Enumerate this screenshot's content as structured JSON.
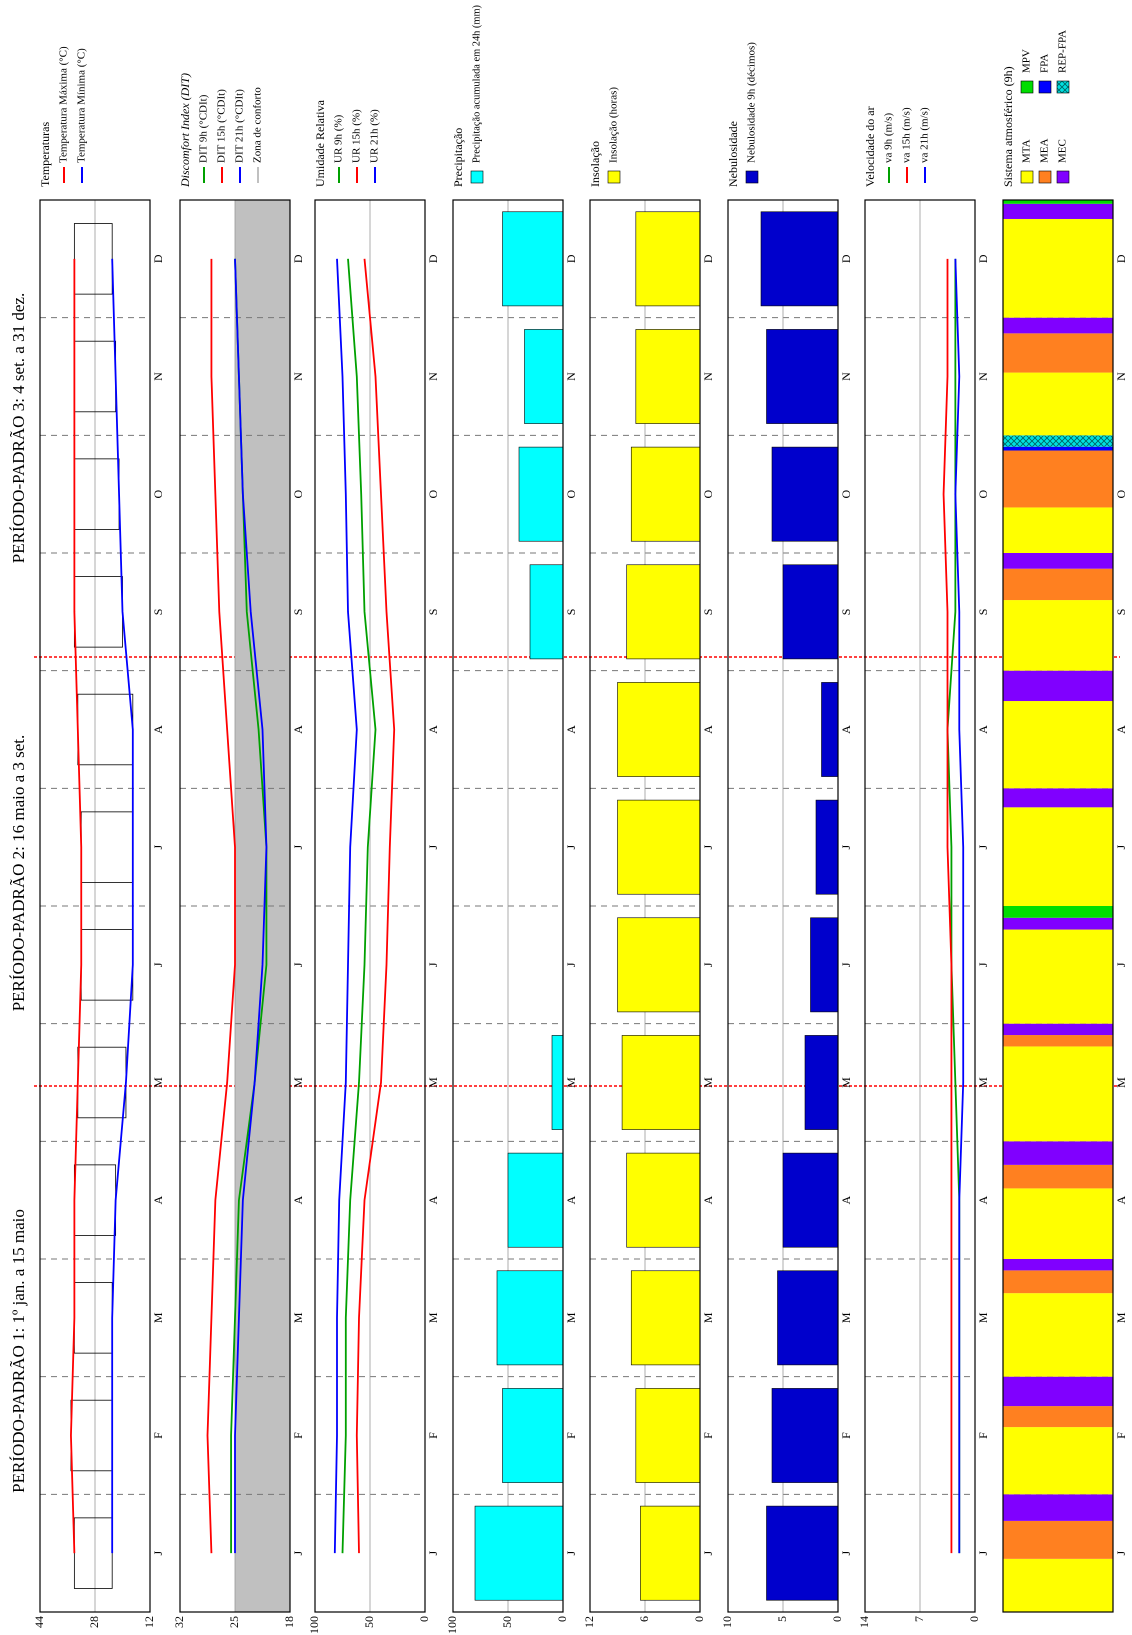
{
  "period_titles": [
    "PERÍODO-PADRÃO 1: 1º jan. a 15 maio",
    "PERÍODO-PADRÃO 2: 16 maio a 3 set.",
    "PERÍODO-PADRÃO 3: 4 set. a 31 dez."
  ],
  "chart_data": [
    {
      "type": "line",
      "legend_title": "Temperaturas",
      "range_bars": true,
      "categories": [
        "J",
        "F",
        "M",
        "A",
        "M",
        "J",
        "J",
        "A",
        "S",
        "O",
        "N",
        "D"
      ],
      "ylim": [
        12,
        44
      ],
      "yticks": [
        12,
        28,
        44
      ],
      "grid": true,
      "series": [
        {
          "name": "Temperatura Máxima (°C)",
          "color": "#ff0000",
          "values": [
            34,
            35,
            34,
            34,
            33,
            32,
            32,
            33,
            34,
            34,
            34,
            34
          ]
        },
        {
          "name": "Temperatura Mínima (°C)",
          "color": "#0000ff",
          "values": [
            23,
            23,
            23,
            22,
            19,
            17,
            17,
            17,
            20,
            21,
            22,
            23
          ]
        }
      ]
    },
    {
      "type": "line",
      "legend_title": "Discomfort Index (DIT)",
      "categories": [
        "J",
        "F",
        "M",
        "A",
        "M",
        "J",
        "J",
        "A",
        "S",
        "O",
        "N",
        "D"
      ],
      "ylim": [
        18,
        32
      ],
      "yticks": [
        18,
        25,
        32
      ],
      "grid": true,
      "comfort_zone": {
        "label": "Zona de conforto",
        "color": "#c0c0c0",
        "range": [
          18,
          25
        ]
      },
      "series": [
        {
          "name": "DIT 9h (°CDIt)",
          "color": "#00a000",
          "values": [
            25.5,
            25.5,
            25,
            24.5,
            22.5,
            21,
            21,
            22,
            23.5,
            24,
            24.5,
            25
          ]
        },
        {
          "name": "DIT 15h (°CDIt)",
          "color": "#ff0000",
          "values": [
            28,
            28.5,
            28,
            27.5,
            26,
            25,
            25,
            26,
            27,
            27.5,
            28,
            28
          ]
        },
        {
          "name": "DIT 21h (°CDIt)",
          "color": "#0000ff",
          "values": [
            25,
            25,
            24.5,
            24,
            22.5,
            21.5,
            21,
            21.5,
            23,
            24,
            24.5,
            25
          ]
        }
      ]
    },
    {
      "type": "line",
      "legend_title": "Umidade Relativa",
      "categories": [
        "J",
        "F",
        "M",
        "A",
        "M",
        "J",
        "J",
        "A",
        "S",
        "O",
        "N",
        "D"
      ],
      "ylim": [
        0,
        100
      ],
      "yticks": [
        0,
        50,
        100
      ],
      "grid": true,
      "series": [
        {
          "name": "UR 9h (%)",
          "color": "#00a000",
          "values": [
            75,
            72,
            72,
            68,
            60,
            55,
            52,
            45,
            55,
            58,
            62,
            70
          ]
        },
        {
          "name": "UR 15h (%)",
          "color": "#ff0000",
          "values": [
            60,
            62,
            60,
            55,
            40,
            35,
            32,
            28,
            35,
            40,
            45,
            55
          ]
        },
        {
          "name": "UR 21h (%)",
          "color": "#0000ff",
          "values": [
            82,
            80,
            80,
            78,
            72,
            70,
            68,
            62,
            70,
            72,
            75,
            80
          ]
        }
      ]
    },
    {
      "type": "bar",
      "legend_title": "Precipitação",
      "categories": [
        "J",
        "F",
        "M",
        "A",
        "M",
        "J",
        "J",
        "A",
        "S",
        "O",
        "N",
        "D"
      ],
      "ylim": [
        0,
        100
      ],
      "yticks": [
        0,
        50,
        100
      ],
      "grid": true,
      "series": [
        {
          "name": "Precipitação acumulada em 24h (mm)",
          "color": "#00ffff",
          "values": [
            80,
            55,
            60,
            50,
            10,
            0,
            0,
            0,
            30,
            40,
            35,
            55
          ]
        }
      ]
    },
    {
      "type": "bar",
      "legend_title": "Insolação",
      "categories": [
        "J",
        "F",
        "M",
        "A",
        "M",
        "J",
        "J",
        "A",
        "S",
        "O",
        "N",
        "D"
      ],
      "ylim": [
        0,
        12
      ],
      "yticks": [
        0,
        6,
        12
      ],
      "grid": true,
      "series": [
        {
          "name": "Insolação (horas)",
          "color": "#ffff00",
          "values": [
            6.5,
            7,
            7.5,
            8,
            8.5,
            9,
            9,
            9,
            8,
            7.5,
            7,
            7
          ]
        }
      ]
    },
    {
      "type": "bar",
      "legend_title": "Nebulosidade",
      "categories": [
        "J",
        "F",
        "M",
        "A",
        "M",
        "J",
        "J",
        "A",
        "S",
        "O",
        "N",
        "D"
      ],
      "ylim": [
        0,
        10
      ],
      "yticks": [
        0,
        5,
        10
      ],
      "grid": true,
      "series": [
        {
          "name": "Nebulosidade 9h (décimos)",
          "color": "#0000cc",
          "values": [
            6.5,
            6,
            5.5,
            5,
            3,
            2.5,
            2,
            1.5,
            5,
            6,
            6.5,
            7
          ]
        }
      ]
    },
    {
      "type": "line",
      "legend_title": "Velocidade do ar",
      "categories": [
        "J",
        "F",
        "M",
        "A",
        "M",
        "J",
        "J",
        "A",
        "S",
        "O",
        "N",
        "D"
      ],
      "ylim": [
        0,
        14
      ],
      "yticks": [
        0,
        7,
        14
      ],
      "grid": true,
      "series": [
        {
          "name": "va 9h (m/s)",
          "color": "#00a000",
          "values": [
            2,
            2,
            2,
            2,
            2.5,
            3,
            3,
            3.5,
            2.5,
            2.5,
            2.5,
            2.5
          ]
        },
        {
          "name": "va 15h (m/s)",
          "color": "#ff0000",
          "values": [
            3,
            3,
            3,
            3,
            3,
            3,
            3.5,
            3.5,
            3.5,
            4,
            3.5,
            3.5
          ]
        },
        {
          "name": "va 21h (m/s)",
          "color": "#0000ff",
          "values": [
            2,
            2,
            2,
            2,
            1.5,
            1.5,
            1.5,
            2,
            2,
            2.5,
            2,
            2.5
          ]
        }
      ]
    },
    {
      "type": "timeline",
      "legend_title": "Sistema atmosférico (9h)",
      "categories": [
        "J",
        "F",
        "M",
        "A",
        "M",
        "J",
        "J",
        "A",
        "S",
        "O",
        "N",
        "D"
      ],
      "series": [
        {
          "name": "MTA",
          "color": "#ffff00",
          "values": [
            14,
            16,
            22,
            18,
            25,
            24,
            26,
            23,
            18,
            12,
            16,
            26
          ]
        },
        {
          "name": "MEA",
          "color": "#ff8020",
          "values": [
            10,
            5,
            6,
            6,
            3,
            0,
            0,
            0,
            8,
            15,
            10,
            0
          ]
        },
        {
          "name": "MEC",
          "color": "#8000ff",
          "values": [
            7,
            7,
            3,
            6,
            3,
            3,
            5,
            8,
            4,
            0,
            4,
            4
          ]
        },
        {
          "name": "MPV",
          "color": "#00dd00",
          "values": [
            0,
            0,
            0,
            0,
            0,
            3,
            0,
            0,
            0,
            0,
            0,
            1
          ]
        },
        {
          "name": "FPA",
          "color": "#0000ff",
          "values": [
            0,
            0,
            0,
            0,
            0,
            0,
            0,
            0,
            0,
            1,
            0,
            0
          ]
        },
        {
          "name": "REP-FPA",
          "color": "#00e0e0",
          "hatched": true,
          "values": [
            0,
            0,
            0,
            0,
            0,
            0,
            0,
            0,
            0,
            3,
            0,
            0
          ]
        }
      ]
    }
  ]
}
